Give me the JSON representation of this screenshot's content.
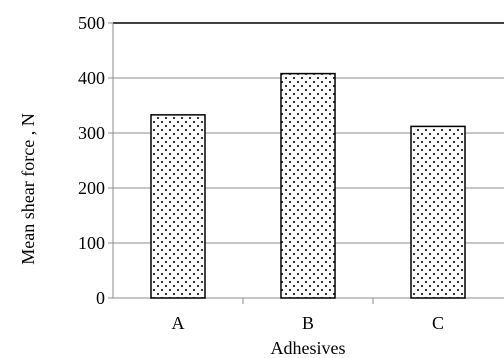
{
  "chart_data": {
    "type": "bar",
    "categories": [
      "A",
      "B",
      "C"
    ],
    "values": [
      333,
      408,
      312
    ],
    "xlabel": "Adhesives",
    "ylabel": "Mean shear force , N",
    "ylim": [
      0,
      500
    ],
    "yticks": [
      0,
      100,
      200,
      300,
      400,
      500
    ],
    "grid": true,
    "legend": "none",
    "bar_fill": "dotted pattern",
    "colors": {
      "bar_stroke": "#000000",
      "dot": "#000000",
      "gridline": "#8c8c8c",
      "axis": "#8c8c8c",
      "plot_top_border": "#000000"
    }
  }
}
